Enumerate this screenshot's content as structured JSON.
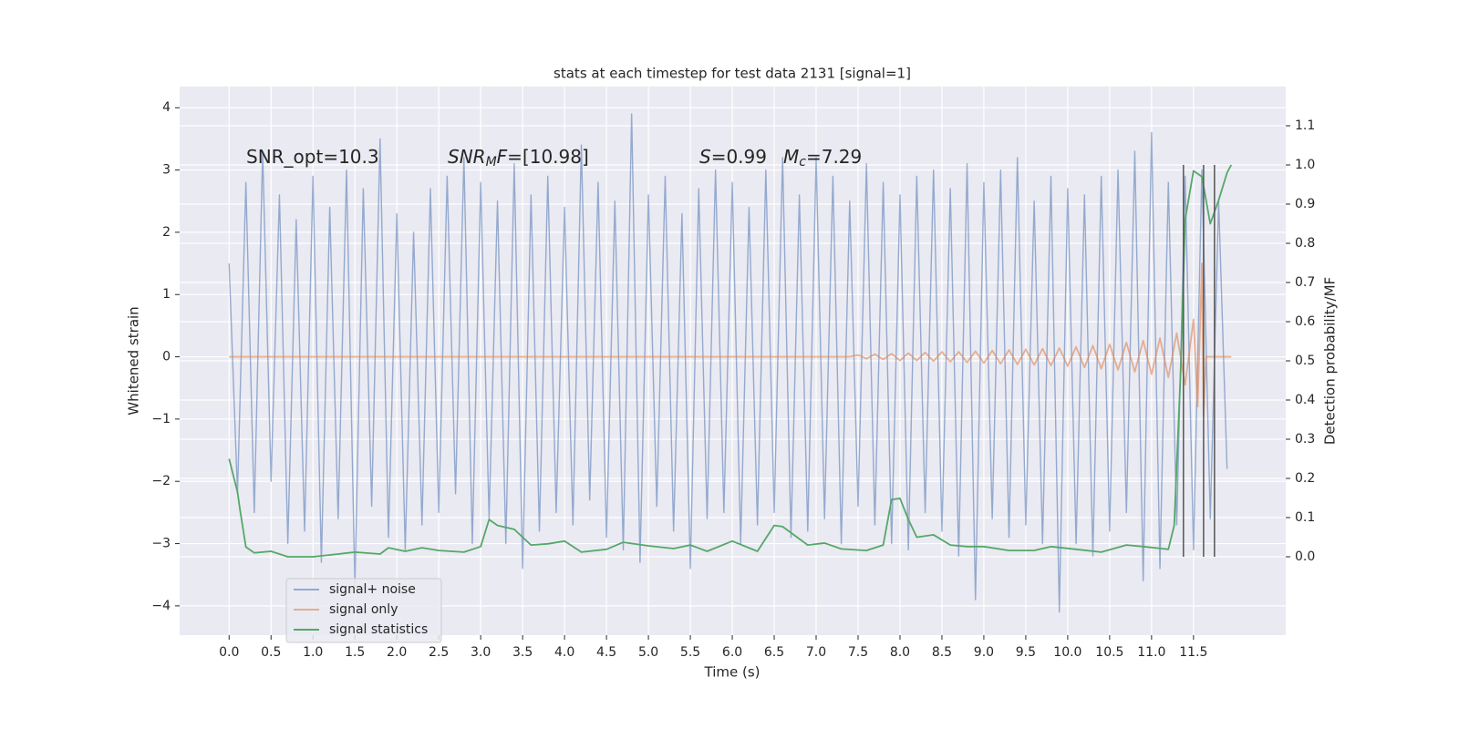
{
  "chart_data": {
    "type": "line",
    "title": "stats at each timestep for test data 2131 [signal=1]",
    "x_label": "Time (s)",
    "y_label": "Whitened strain",
    "y2_label": "Detection probability/MF",
    "xlim": [
      -0.59,
      12.6
    ],
    "ylim": [
      -4.47,
      4.34
    ],
    "y2lim": [
      -0.2,
      1.2
    ],
    "xticks": [
      {
        "value": 0,
        "label": "0.0"
      },
      {
        "value": 0.5,
        "label": "0.5"
      },
      {
        "value": 1,
        "label": "1.0"
      },
      {
        "value": 1.5,
        "label": "1.5"
      },
      {
        "value": 2,
        "label": "2.0"
      },
      {
        "value": 2.5,
        "label": "2.5"
      },
      {
        "value": 3,
        "label": "3.0"
      },
      {
        "value": 3.5,
        "label": "3.5"
      },
      {
        "value": 4,
        "label": "4.0"
      },
      {
        "value": 4.5,
        "label": "4.5"
      },
      {
        "value": 5,
        "label": "5.0"
      },
      {
        "value": 5.5,
        "label": "5.5"
      },
      {
        "value": 6,
        "label": "6.0"
      },
      {
        "value": 6.5,
        "label": "6.5"
      },
      {
        "value": 7,
        "label": "7.0"
      },
      {
        "value": 7.5,
        "label": "7.5"
      },
      {
        "value": 8,
        "label": "8.0"
      },
      {
        "value": 8.5,
        "label": "8.5"
      },
      {
        "value": 9,
        "label": "9.0"
      },
      {
        "value": 9.5,
        "label": "9.5"
      },
      {
        "value": 10,
        "label": "10.0"
      },
      {
        "value": 10.5,
        "label": "10.5"
      },
      {
        "value": 11,
        "label": "11.0"
      },
      {
        "value": 11.5,
        "label": "11.5"
      }
    ],
    "yticks": [
      {
        "value": -4,
        "label": "−4"
      },
      {
        "value": -3,
        "label": "−3"
      },
      {
        "value": -2,
        "label": "−2"
      },
      {
        "value": -1,
        "label": "−1"
      },
      0,
      1,
      2,
      3,
      4
    ],
    "y2ticks": [
      {
        "value": 0,
        "label": "0.0"
      },
      {
        "value": 0.1,
        "label": "0.1"
      },
      {
        "value": 0.2,
        "label": "0.2"
      },
      {
        "value": 0.3,
        "label": "0.3"
      },
      {
        "value": 0.4,
        "label": "0.4"
      },
      {
        "value": 0.5,
        "label": "0.5"
      },
      {
        "value": 0.6,
        "label": "0.6"
      },
      {
        "value": 0.7,
        "label": "0.7"
      },
      {
        "value": 0.8,
        "label": "0.8"
      },
      {
        "value": 0.9,
        "label": "0.9"
      },
      {
        "value": 1,
        "label": "1.0"
      },
      {
        "value": 1.1,
        "label": "1.1"
      }
    ],
    "grid": true,
    "legend": "lower left",
    "annotations": [
      [
        {
          "text": "SNR_opt=10.3"
        }
      ],
      [
        {
          "text": "SNR",
          "italic": true
        },
        {
          "text": "M",
          "italic": true,
          "sub": true
        },
        {
          "text": "F",
          "italic": true
        },
        {
          "text": "=[10.98]"
        }
      ],
      [
        {
          "text": "S",
          "italic": true
        },
        {
          "text": "=0.99"
        }
      ],
      [
        {
          "text": "M",
          "italic": true
        },
        {
          "text": "c",
          "italic": true,
          "sub": true
        },
        {
          "text": "=7.29"
        }
      ]
    ],
    "vlines": {
      "x": [
        11.38,
        11.62,
        11.75
      ],
      "y2": [
        0,
        1
      ],
      "color": "#555555"
    },
    "series": [
      {
        "name": "signal+ noise",
        "color": "#4c72b0",
        "opacity": 0.55,
        "x": [
          0,
          0.1,
          0.2,
          0.3,
          0.4,
          0.5,
          0.6,
          0.7,
          0.8,
          0.9,
          1,
          1.1,
          1.2,
          1.3,
          1.4,
          1.5,
          1.6,
          1.7,
          1.8,
          1.9,
          2,
          2.1,
          2.2,
          2.3,
          2.4,
          2.5,
          2.6,
          2.7,
          2.8,
          2.9,
          3,
          3.1,
          3.2,
          3.3,
          3.4,
          3.5,
          3.6,
          3.7,
          3.8,
          3.9,
          4,
          4.1,
          4.2,
          4.3,
          4.4,
          4.5,
          4.6,
          4.7,
          4.8,
          4.9,
          5,
          5.1,
          5.2,
          5.3,
          5.4,
          5.5,
          5.6,
          5.7,
          5.8,
          5.9,
          6,
          6.1,
          6.2,
          6.3,
          6.4,
          6.5,
          6.6,
          6.7,
          6.8,
          6.9,
          7,
          7.1,
          7.2,
          7.3,
          7.4,
          7.5,
          7.6,
          7.7,
          7.8,
          7.9,
          8,
          8.1,
          8.2,
          8.3,
          8.4,
          8.5,
          8.6,
          8.7,
          8.8,
          8.9,
          9,
          9.1,
          9.2,
          9.3,
          9.4,
          9.5,
          9.6,
          9.7,
          9.8,
          9.9,
          10,
          10.1,
          10.2,
          10.3,
          10.4,
          10.5,
          10.6,
          10.7,
          10.8,
          10.9,
          11,
          11.1,
          11.2,
          11.3,
          11.4,
          11.5,
          11.6,
          11.7,
          11.8,
          11.9
        ],
        "values": [
          1.5,
          -2.2,
          2.8,
          -2.5,
          3.3,
          -2.0,
          2.6,
          -3.0,
          2.2,
          -2.8,
          2.9,
          -3.3,
          2.4,
          -2.6,
          3.0,
          -3.7,
          2.7,
          -2.4,
          3.5,
          -2.9,
          2.3,
          -3.1,
          2.0,
          -2.7,
          2.7,
          -2.5,
          2.9,
          -2.2,
          3.2,
          -3.0,
          2.8,
          -2.6,
          2.5,
          -3.0,
          3.1,
          -3.4,
          2.6,
          -2.8,
          2.9,
          -2.5,
          2.4,
          -2.7,
          3.4,
          -2.3,
          2.8,
          -2.9,
          2.5,
          -3.1,
          3.9,
          -3.3,
          2.6,
          -2.4,
          2.9,
          -2.8,
          2.3,
          -3.4,
          2.7,
          -2.6,
          3.0,
          -2.5,
          2.8,
          -3.0,
          2.4,
          -2.7,
          3.0,
          -2.5,
          3.2,
          -2.9,
          2.6,
          -2.8,
          3.2,
          -2.6,
          2.9,
          -3.0,
          2.5,
          -2.4,
          3.1,
          -2.7,
          2.8,
          -3.0,
          2.6,
          -3.1,
          2.9,
          -2.5,
          3.0,
          -2.8,
          2.7,
          -3.2,
          3.1,
          -3.9,
          2.8,
          -2.6,
          3.0,
          -2.9,
          3.2,
          -2.7,
          2.5,
          -3.0,
          2.9,
          -4.1,
          2.7,
          -3.0,
          2.6,
          -3.2,
          2.9,
          -2.8,
          3.0,
          -2.5,
          3.3,
          -3.6,
          3.6,
          -3.4,
          2.8,
          -2.7,
          2.9,
          -3.1,
          3.0,
          -2.6,
          2.5,
          -1.8
        ]
      },
      {
        "name": "signal only",
        "color": "#dd8452",
        "opacity": 0.6,
        "x": [
          0,
          7.4,
          7.5,
          7.6,
          7.7,
          7.8,
          7.9,
          8,
          8.1,
          8.2,
          8.3,
          8.4,
          8.5,
          8.6,
          8.7,
          8.8,
          8.9,
          9,
          9.1,
          9.2,
          9.3,
          9.4,
          9.5,
          9.6,
          9.7,
          9.8,
          9.9,
          10,
          10.1,
          10.2,
          10.3,
          10.4,
          10.5,
          10.6,
          10.7,
          10.8,
          10.9,
          11,
          11.1,
          11.2,
          11.3,
          11.4,
          11.5,
          11.55,
          11.6,
          11.62,
          11.65,
          11.95
        ],
        "values": [
          0,
          0,
          0.03,
          -0.03,
          0.04,
          -0.04,
          0.05,
          -0.06,
          0.06,
          -0.06,
          0.07,
          -0.07,
          0.08,
          -0.08,
          0.08,
          -0.09,
          0.09,
          -0.1,
          0.1,
          -0.11,
          0.11,
          -0.12,
          0.12,
          -0.13,
          0.13,
          -0.14,
          0.14,
          -0.15,
          0.16,
          -0.17,
          0.18,
          -0.19,
          0.2,
          -0.21,
          0.23,
          -0.24,
          0.26,
          -0.28,
          0.3,
          -0.33,
          0.38,
          -0.45,
          0.6,
          -0.8,
          1.5,
          -0.95,
          0,
          0
        ]
      },
      {
        "name": "signal statistics",
        "color": "#55a868",
        "opacity": 1,
        "axis": "y2",
        "x": [
          0,
          0.1,
          0.13,
          0.2,
          0.3,
          0.5,
          0.7,
          1,
          1.3,
          1.5,
          1.8,
          1.9,
          2.1,
          2.3,
          2.5,
          2.8,
          3,
          3.1,
          3.2,
          3.4,
          3.6,
          3.8,
          4,
          4.2,
          4.5,
          4.7,
          5,
          5.3,
          5.5,
          5.7,
          6,
          6.3,
          6.5,
          6.6,
          6.9,
          7.1,
          7.3,
          7.6,
          7.8,
          7.9,
          8,
          8.1,
          8.2,
          8.4,
          8.6,
          8.8,
          9,
          9.3,
          9.6,
          9.8,
          10.1,
          10.4,
          10.7,
          10.9,
          11.2,
          11.27,
          11.35,
          11.4,
          11.5,
          11.6,
          11.7,
          11.8,
          11.9,
          11.95
        ],
        "values": [
          0.25,
          0.165,
          0.12,
          0.025,
          0.01,
          0.014,
          0,
          0,
          0.007,
          0.012,
          0.007,
          0.023,
          0.014,
          0.023,
          0.016,
          0.012,
          0.026,
          0.095,
          0.08,
          0.07,
          0.03,
          0.033,
          0.04,
          0.012,
          0.019,
          0.037,
          0.028,
          0.021,
          0.03,
          0.014,
          0.04,
          0.014,
          0.08,
          0.077,
          0.03,
          0.035,
          0.02,
          0.016,
          0.03,
          0.146,
          0.149,
          0.095,
          0.05,
          0.056,
          0.03,
          0.026,
          0.026,
          0.016,
          0.016,
          0.026,
          0.019,
          0.012,
          0.03,
          0.026,
          0.019,
          0.08,
          0.49,
          0.86,
          0.985,
          0.97,
          0.85,
          0.91,
          0.98,
          1.0
        ]
      }
    ]
  }
}
